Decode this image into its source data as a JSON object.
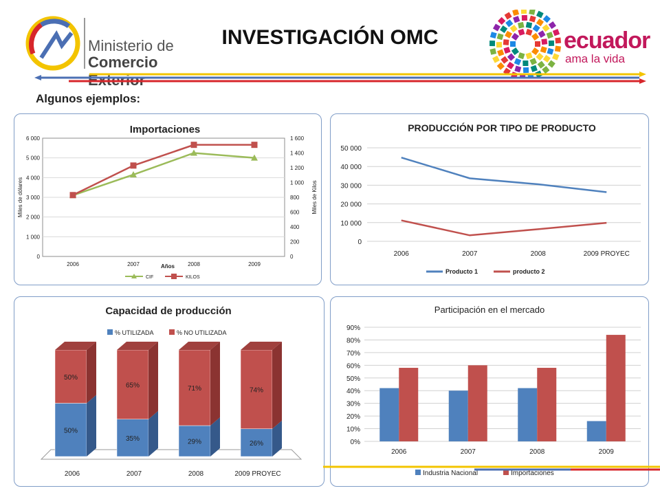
{
  "header": {
    "title": "INVESTIGACIÓN OMC",
    "ministry_line1": "Ministerio de",
    "ministry_line2": "Comercio Exterior",
    "brand_name": "ecuador",
    "brand_slogan": "ama la vida",
    "colors": {
      "blue": "#4b6fb3",
      "red": "#d7262b",
      "yellow": "#f3c400",
      "green": "#6aa53a"
    }
  },
  "subtitle": "Algunos ejemplos:",
  "chart_data": [
    {
      "type": "line",
      "title": "Importaciones",
      "xlabel": "Años",
      "ylabel": "Miles de dólares",
      "y2label": "Miles de Kilos",
      "categories": [
        "2006",
        "2007",
        "2008",
        "2009"
      ],
      "ylim": [
        0,
        6000
      ],
      "y2lim": [
        0,
        1600
      ],
      "yticks": [
        "0",
        "1 000",
        "2 000",
        "3 000",
        "4 000",
        "5 000",
        "6 000"
      ],
      "y2ticks": [
        "0",
        "200",
        "400",
        "600",
        "800",
        "1 000",
        "1 200",
        "1 400",
        "1 600"
      ],
      "series": [
        {
          "name": "CIF",
          "axis": "left",
          "color": "#9bbb59",
          "values": [
            3100,
            4150,
            5250,
            5000
          ]
        },
        {
          "name": "KILOS",
          "axis": "right",
          "color": "#c0504d",
          "values": [
            830,
            1230,
            1510,
            1510
          ]
        }
      ],
      "legend": "bottom"
    },
    {
      "type": "line",
      "title": "PRODUCCIÓN POR TIPO DE PRODUCTO",
      "categories": [
        "2006",
        "2007",
        "2008",
        "2009 PROYEC"
      ],
      "ylim": [
        0,
        50000
      ],
      "yticks": [
        "0",
        "10 000",
        "20 000",
        "30 000",
        "40 000",
        "50 000"
      ],
      "series": [
        {
          "name": "Producto 1",
          "color": "#4f81bd",
          "values": [
            44800,
            33700,
            30500,
            26300
          ]
        },
        {
          "name": "producto 2",
          "color": "#c0504d",
          "values": [
            11200,
            3200,
            6500,
            9900
          ]
        }
      ],
      "legend": "bottom"
    },
    {
      "type": "bar",
      "stacked": true,
      "title": "Capacidad de producción",
      "categories": [
        "2006",
        "2007",
        "2008",
        "2009 PROYEC"
      ],
      "ylim": [
        0,
        100
      ],
      "series": [
        {
          "name": "% UTILIZADA",
          "color": "#4f81bd",
          "values": [
            50,
            35,
            29,
            26
          ],
          "labels": [
            "50%",
            "35%",
            "29%",
            "26%"
          ]
        },
        {
          "name": "% NO UTILIZADA",
          "color": "#c0504d",
          "values": [
            50,
            65,
            71,
            74
          ],
          "labels": [
            "50%",
            "65%",
            "71%",
            "74%"
          ]
        }
      ],
      "legend": "top"
    },
    {
      "type": "bar",
      "title": "Participación en el mercado",
      "categories": [
        "2006",
        "2007",
        "2008",
        "2009"
      ],
      "ylim": [
        0,
        90
      ],
      "yticks": [
        "0%",
        "10%",
        "20%",
        "30%",
        "40%",
        "50%",
        "60%",
        "70%",
        "80%",
        "90%"
      ],
      "series": [
        {
          "name": "Industria Nacional",
          "color": "#4f81bd",
          "values": [
            42,
            40,
            42,
            16
          ]
        },
        {
          "name": "Importaciones",
          "color": "#c0504d",
          "values": [
            58,
            60,
            58,
            84
          ]
        }
      ],
      "legend": "bottom"
    }
  ]
}
